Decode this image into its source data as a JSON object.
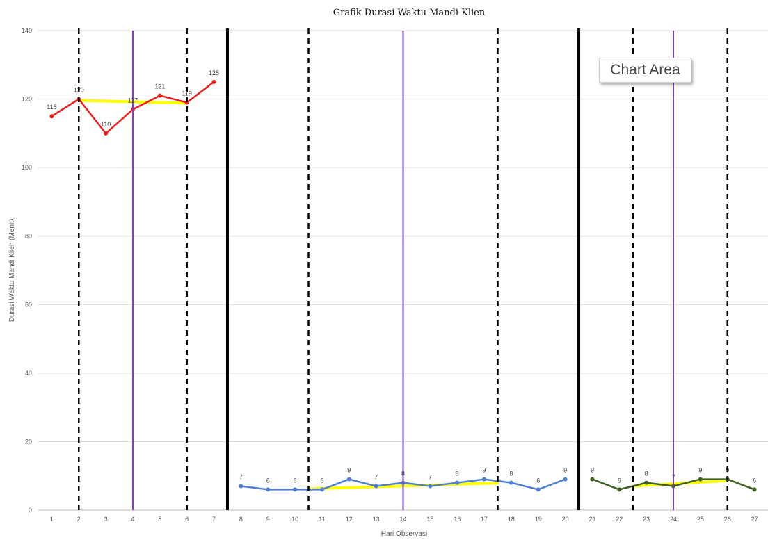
{
  "chart_data": {
    "type": "line",
    "title": "Grafik Durasi Waktu Mandi Klien",
    "xlabel": "Hari Observasi",
    "ylabel": "Durasi Waktu Mandi Klien (Menit)",
    "ylim": [
      0,
      140
    ],
    "yticks": [
      0,
      20,
      40,
      60,
      80,
      100,
      120,
      140
    ],
    "categories": [
      "1",
      "2",
      "3",
      "4",
      "5",
      "6",
      "7",
      "8",
      "9",
      "10",
      "11",
      "12",
      "13",
      "14",
      "15",
      "16",
      "17",
      "18",
      "19",
      "20",
      "21",
      "22",
      "23",
      "24",
      "25",
      "26",
      "27"
    ],
    "grid": true,
    "series": [
      {
        "color": "#ee1c1c",
        "x": [
          1,
          2,
          3,
          4,
          5,
          6,
          7
        ],
        "values": [
          115,
          120,
          110,
          117,
          121,
          119,
          125
        ],
        "labels": [
          "115",
          "120",
          "110",
          "117",
          "121",
          "119",
          "125"
        ]
      },
      {
        "color": "#4f7fd1",
        "x": [
          8,
          9,
          10,
          11,
          12,
          13,
          14,
          15,
          16,
          17,
          18,
          19,
          20
        ],
        "values": [
          7,
          6,
          6,
          6,
          9,
          7,
          8,
          7,
          8,
          9,
          8,
          6,
          9
        ],
        "labels": [
          "7",
          "6",
          "6",
          "6",
          "9",
          "7",
          "8",
          "7",
          "8",
          "9",
          "8",
          "6",
          "9"
        ]
      },
      {
        "color": "#3f6020",
        "x": [
          21,
          22,
          23,
          24,
          25,
          26,
          27
        ],
        "values": [
          9,
          6,
          8,
          7,
          9,
          9,
          6
        ],
        "labels": [
          "9",
          "6",
          "8",
          "7",
          "9",
          "9",
          "6"
        ]
      }
    ],
    "trend_lines": [
      {
        "color": "#ffff00",
        "x": [
          2,
          6
        ],
        "y": [
          119.6,
          118.8
        ]
      },
      {
        "color": "#ffff00",
        "x": [
          10.5,
          17.5
        ],
        "y": [
          6.2,
          7.9
        ]
      },
      {
        "color": "#ffff00",
        "x": [
          22.5,
          26
        ],
        "y": [
          7.0,
          8.6
        ]
      }
    ],
    "phase_lines": [
      {
        "style": "solid",
        "color": "#000000",
        "x": 7.5
      },
      {
        "style": "solid",
        "color": "#000000",
        "x": 20.5
      }
    ],
    "dashed_lines": [
      {
        "style": "dashed",
        "color": "#000000",
        "x": 2
      },
      {
        "style": "dashed",
        "color": "#000000",
        "x": 6
      },
      {
        "style": "dashed",
        "color": "#000000",
        "x": 10.5
      },
      {
        "style": "dashed",
        "color": "#000000",
        "x": 17.5
      },
      {
        "style": "dashed",
        "color": "#000000",
        "x": 22.5
      },
      {
        "style": "dashed",
        "color": "#000000",
        "x": 26
      }
    ],
    "median_lines": [
      {
        "color": "#7e3fbf",
        "x": 4
      },
      {
        "color": "#7e3fbf",
        "x": 14
      },
      {
        "color": "#7e3fbf",
        "x": 24
      }
    ]
  },
  "tooltip": {
    "text": "Chart Area"
  }
}
